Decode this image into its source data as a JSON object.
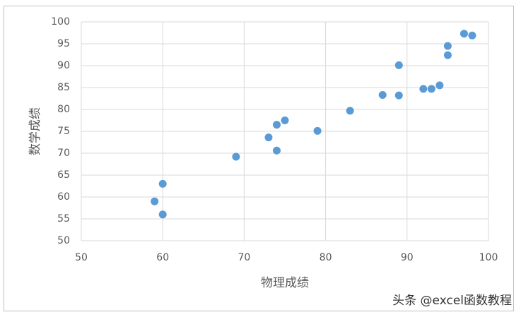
{
  "chart_data": {
    "type": "scatter",
    "x_label": "物理成绩",
    "y_label": "数学成绩",
    "x": [
      59,
      60,
      60,
      69,
      73,
      74,
      74,
      75,
      79,
      83,
      87,
      89,
      89,
      92,
      93,
      94,
      95,
      95,
      97,
      98
    ],
    "values": [
      59,
      63,
      56,
      69.2,
      73.6,
      76.5,
      70.6,
      77.5,
      75.1,
      79.7,
      83.3,
      83.2,
      90.1,
      84.7,
      84.7,
      85.5,
      94.5,
      92.4,
      97.3,
      96.9
    ],
    "color": "#5b9bd5",
    "xlim": [
      50,
      100
    ],
    "xticks": [
      50,
      60,
      70,
      80,
      90,
      100
    ],
    "ylim": [
      50,
      100
    ],
    "yticks": [
      50,
      55,
      60,
      65,
      70,
      75,
      80,
      85,
      90,
      95,
      100
    ],
    "grid": true
  },
  "watermark": "头条 @excel函数教程"
}
